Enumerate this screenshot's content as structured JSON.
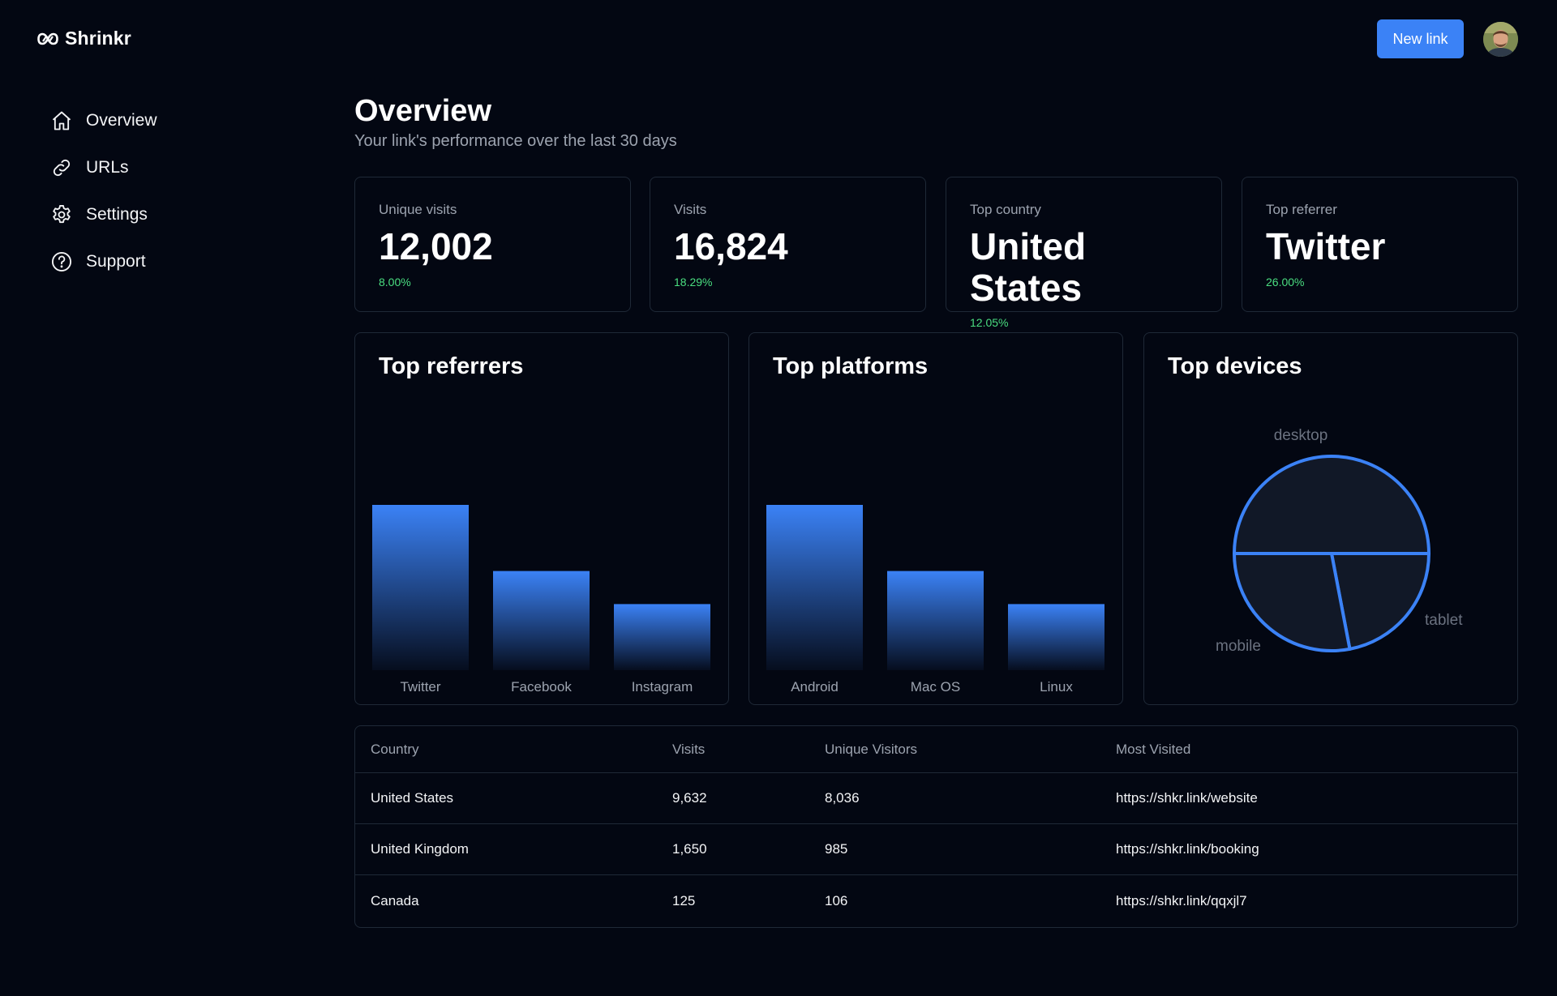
{
  "app": {
    "name": "Shrinkr"
  },
  "header": {
    "new_link_label": "New link"
  },
  "sidebar": {
    "items": [
      {
        "label": "Overview",
        "icon": "home-icon"
      },
      {
        "label": "URLs",
        "icon": "link-icon"
      },
      {
        "label": "Settings",
        "icon": "gear-icon"
      },
      {
        "label": "Support",
        "icon": "help-circle-icon"
      }
    ]
  },
  "page": {
    "title": "Overview",
    "subtitle": "Your link's performance over the last 30 days"
  },
  "stats": [
    {
      "label": "Unique visits",
      "value": "12,002",
      "change": "8.00%"
    },
    {
      "label": "Visits",
      "value": "16,824",
      "change": "18.29%"
    },
    {
      "label": "Top country",
      "value": "United States",
      "change": "12.05%"
    },
    {
      "label": "Top referrer",
      "value": "Twitter",
      "change": "26.00%"
    }
  ],
  "colors": {
    "accent": "#3b82f6",
    "positive": "#4ade80",
    "background": "#030712",
    "border": "#1f2937"
  },
  "chart_data": [
    {
      "type": "bar",
      "title": "Top referrers",
      "categories": [
        "Twitter",
        "Facebook",
        "Instagram"
      ],
      "values": [
        100,
        60,
        40
      ]
    },
    {
      "type": "bar",
      "title": "Top platforms",
      "categories": [
        "Android",
        "Mac OS",
        "Linux"
      ],
      "values": [
        100,
        60,
        40
      ]
    },
    {
      "type": "pie",
      "title": "Top devices",
      "categories": [
        "desktop",
        "tablet",
        "mobile"
      ],
      "values": [
        50,
        22,
        28
      ]
    }
  ],
  "table": {
    "headers": [
      "Country",
      "Visits",
      "Unique Visitors",
      "Most Visited"
    ],
    "rows": [
      [
        "United States",
        "9,632",
        "8,036",
        "https://shkr.link/website"
      ],
      [
        "United Kingdom",
        "1,650",
        "985",
        "https://shkr.link/booking"
      ],
      [
        "Canada",
        "125",
        "106",
        "https://shkr.link/qqxjl7"
      ]
    ]
  }
}
